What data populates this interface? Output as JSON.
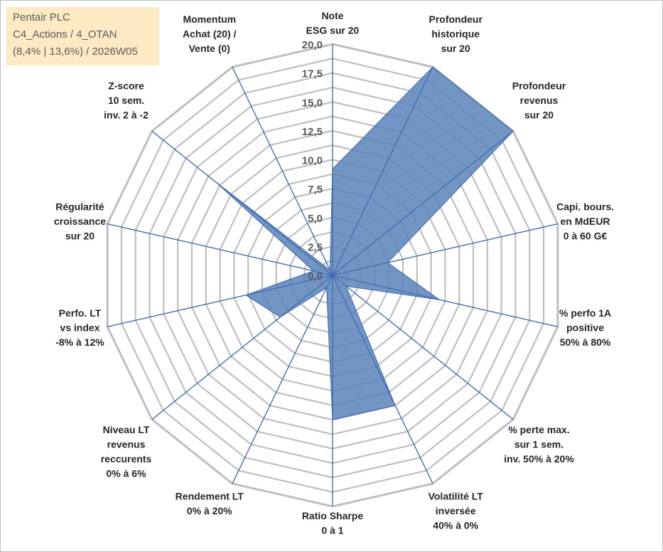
{
  "info_box": {
    "line1": "Pentair PLC",
    "line2": "C4_Actions / 4_OTAN",
    "line3": "(8,4% | 13,6%) / 2026W05"
  },
  "colors": {
    "grid": "#bfbfbf",
    "spoke": "#3c68b0",
    "fill": "#5a83b8",
    "fill_opacity": "0.85",
    "info_bg": "#fde9c4"
  },
  "chart_data": {
    "type": "radar",
    "title": "",
    "rmin": 0,
    "rmax": 20,
    "tick_step": 2.5,
    "ticks": [
      "0,0",
      "2,5",
      "5,0",
      "7,5",
      "10,0",
      "12,5",
      "15,0",
      "17,5",
      "20,0"
    ],
    "grid_rings": 16,
    "axes": [
      {
        "label": [
          "Note",
          "ESG sur 20"
        ],
        "value": 9.2
      },
      {
        "label": [
          "Profondeur",
          "historique",
          "sur 20"
        ],
        "value": 20.0
      },
      {
        "label": [
          "Profondeur",
          "revenus",
          "sur 20"
        ],
        "value": 20.0
      },
      {
        "label": [
          "Capi. bours.",
          "en MdEUR",
          "0 à 60 G€"
        ],
        "value": 4.9
      },
      {
        "label": [
          "% perfo 1A",
          "positive",
          "50% à 80%"
        ],
        "value": 9.5
      },
      {
        "label": [
          "% perte max.",
          "sur 1 sem.",
          "inv. 50% à 20%"
        ],
        "value": 1.5
      },
      {
        "label": [
          "Volatilité LT",
          "inversée",
          "40% à 0%"
        ],
        "value": 12.5
      },
      {
        "label": [
          "Ratio Sharpe",
          "0 à 1"
        ],
        "value": 12.5
      },
      {
        "label": [
          "Rendement LT",
          "0% à 20%"
        ],
        "value": 1.2
      },
      {
        "label": [
          "Niveau LT",
          "revenus",
          "reccurents",
          "0% à 6%"
        ],
        "value": 5.8
      },
      {
        "label": [
          "Perfo. LT",
          "vs index",
          "-8% à 12%"
        ],
        "value": 7.7
      },
      {
        "label": [
          "Régularité",
          "croissance",
          "sur 20"
        ],
        "value": 1.7
      },
      {
        "label": [
          "Z-score",
          "10 sem.",
          "inv. 2 à -2"
        ],
        "value": 13.0
      },
      {
        "label": [
          "Momentum",
          "Achat (20) /",
          "Vente (0)"
        ],
        "value": 0.5
      }
    ]
  }
}
